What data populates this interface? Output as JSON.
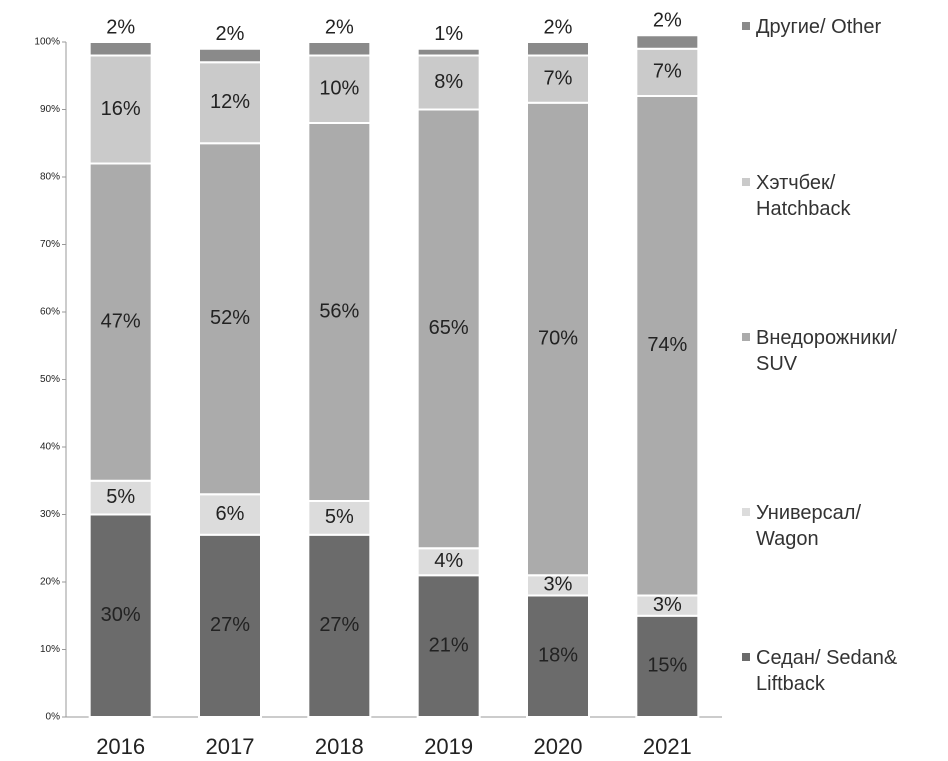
{
  "chart_data": {
    "type": "stacked_bar",
    "categories": [
      "2016",
      "2017",
      "2018",
      "2019",
      "2020",
      "2021"
    ],
    "series": [
      {
        "name": "Седан/ Sedan& Liftback",
        "color": "#6b6b6b",
        "values": [
          30,
          27,
          27,
          21,
          18,
          15
        ],
        "value_labels": [
          "30%",
          "27%",
          "27%",
          "21%",
          "18%",
          "15%"
        ]
      },
      {
        "name": "Универсал/ Wagon",
        "color": "#dcdcdc",
        "values": [
          5,
          6,
          5,
          4,
          3,
          3
        ],
        "value_labels": [
          "5%",
          "6%",
          "5%",
          "4%",
          "3%",
          "3%"
        ]
      },
      {
        "name": "Внедорожники/ SUV",
        "color": "#ababab",
        "values": [
          47,
          52,
          56,
          65,
          70,
          74
        ],
        "value_labels": [
          "47%",
          "52%",
          "56%",
          "65%",
          "70%",
          "74%"
        ]
      },
      {
        "name": "Хэтчбек/ Hatchback",
        "color": "#cacaca",
        "values": [
          16,
          12,
          10,
          8,
          7,
          7
        ],
        "value_labels": [
          "16%",
          "12%",
          "10%",
          "8%",
          "7%",
          "7%"
        ]
      },
      {
        "name": "Другие/ Other",
        "color": "#8a8a8a",
        "values": [
          2,
          2,
          2,
          1,
          2,
          2
        ],
        "value_labels": [
          "2%",
          "2%",
          "2%",
          "1%",
          "2%",
          "2%"
        ]
      }
    ],
    "ylim": [
      0,
      100
    ],
    "yticks": [
      {
        "value": 0,
        "label": "0%"
      },
      {
        "value": 10,
        "label": "10%"
      },
      {
        "value": 20,
        "label": "20%"
      },
      {
        "value": 30,
        "label": "30%"
      },
      {
        "value": 40,
        "label": "40%"
      },
      {
        "value": 50,
        "label": "50%"
      },
      {
        "value": 60,
        "label": "60%"
      },
      {
        "value": 70,
        "label": "70%"
      },
      {
        "value": 80,
        "label": "80%"
      },
      {
        "value": 90,
        "label": "90%"
      },
      {
        "value": 100,
        "label": "100%"
      }
    ],
    "legend": "right"
  }
}
